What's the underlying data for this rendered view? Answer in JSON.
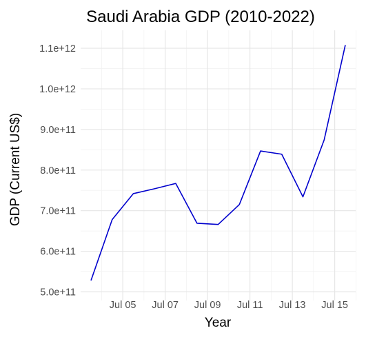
{
  "chart_data": {
    "type": "line",
    "title": "Saudi Arabia GDP (2010-2022)",
    "xlabel": "Year",
    "ylabel": "GDP (Current US$)",
    "x_tick_labels": [
      "Jul 05",
      "Jul 07",
      "Jul 09",
      "Jul 11",
      "Jul 13",
      "Jul 15"
    ],
    "x_tick_positions": [
      2.5,
      4.5,
      6.5,
      8.5,
      10.5,
      12.5
    ],
    "y_tick_labels": [
      "5.0e+11",
      "6.0e+11",
      "7.0e+11",
      "8.0e+11",
      "9.0e+11",
      "1.0e+12",
      "1.1e+12"
    ],
    "y_tick_values": [
      500000000000,
      600000000000,
      700000000000,
      800000000000,
      900000000000,
      1000000000000,
      1100000000000
    ],
    "xlim": [
      0.5,
      13.5
    ],
    "ylim": [
      500000000000,
      1110000000000
    ],
    "grid": true,
    "legend": "none",
    "series": [
      {
        "x": [
          1,
          2,
          3,
          4,
          5,
          6,
          7,
          8,
          9,
          10,
          11,
          12,
          13
        ],
        "values": [
          528000000000,
          678000000000,
          742000000000,
          754000000000,
          767000000000,
          669000000000,
          666000000000,
          715000000000,
          847000000000,
          839000000000,
          734000000000,
          874000000000,
          1108000000000
        ],
        "color": "#0000cd"
      }
    ]
  }
}
